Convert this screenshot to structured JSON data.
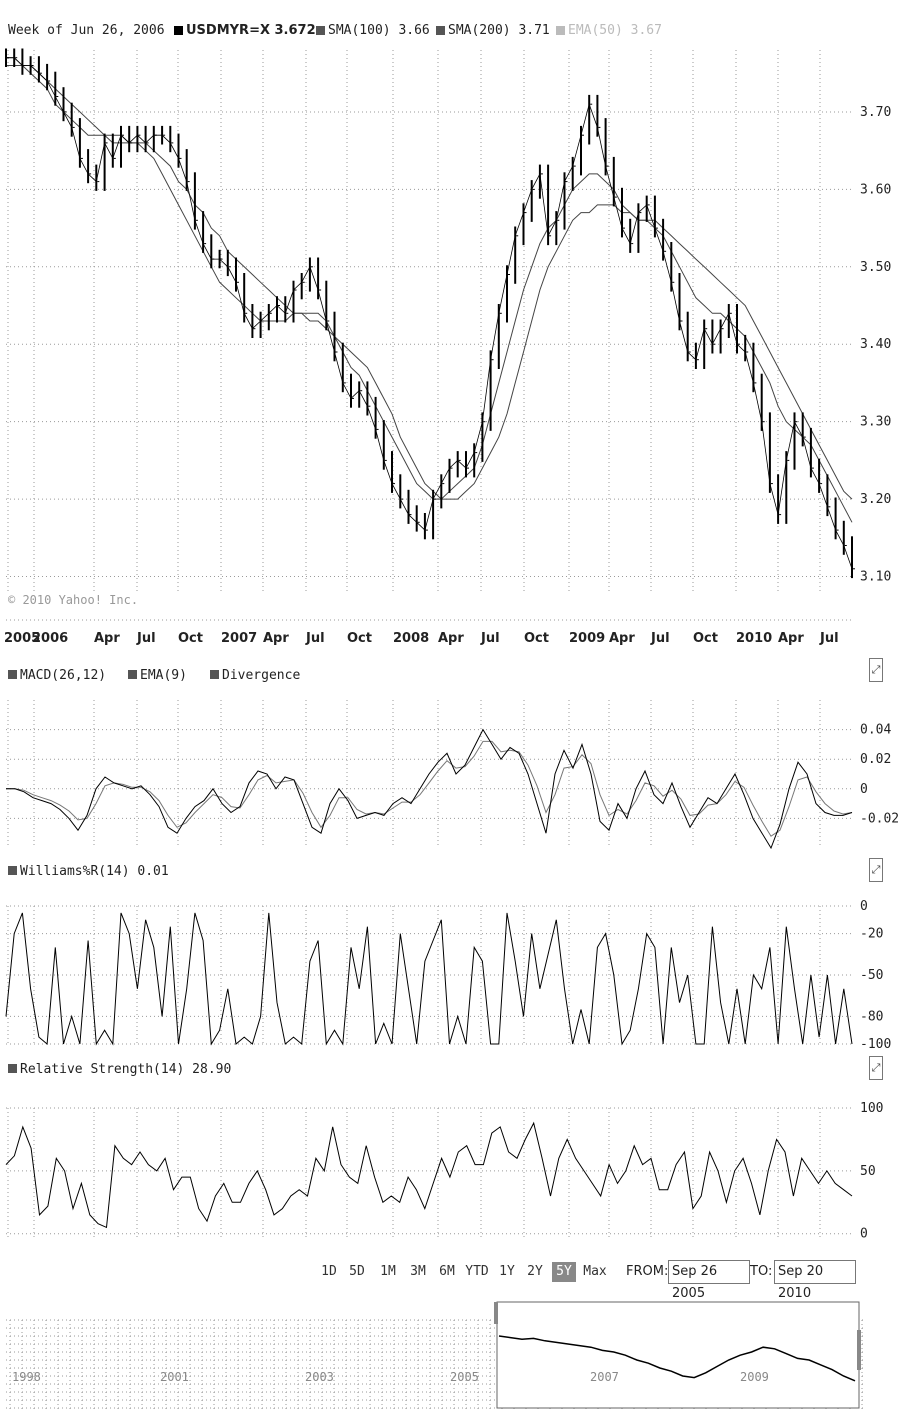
{
  "header": {
    "week_label": "Week of Jun 26, 2006 :",
    "symbol_label": "USDMYR=X 3.672",
    "sma100_label": "SMA(100) 3.66",
    "sma200_label": "SMA(200) 3.71",
    "ema_label": "EMA(50) 3.67"
  },
  "colors": {
    "price": "#000000",
    "grid": "#9a9a9a",
    "active_button": "#888888"
  },
  "chart_data": [
    {
      "type": "line",
      "panel": "price",
      "title": "USDMYR=X",
      "y_ticks": [
        "3.70",
        "3.60",
        "3.50",
        "3.40",
        "3.30",
        "3.20",
        "3.10"
      ],
      "y_tick_values": [
        3.7,
        3.6,
        3.5,
        3.4,
        3.3,
        3.2,
        3.1
      ],
      "ylim": [
        3.08,
        3.78
      ],
      "x_ticks": [
        "2005",
        "2006",
        "Apr",
        "Jul",
        "Oct",
        "2007",
        "Apr",
        "Jul",
        "Oct",
        "2008",
        "Apr",
        "Jul",
        "Oct",
        "2009",
        "Apr",
        "Jul",
        "Oct",
        "2010",
        "Apr",
        "Jul"
      ],
      "x_tick_positions": [
        8,
        34,
        94,
        137,
        178,
        221,
        263,
        306,
        347,
        393,
        438,
        481,
        524,
        569,
        609,
        651,
        693,
        736,
        778,
        820
      ],
      "x_tick_text_positions": [
        4,
        32,
        94,
        137,
        178,
        221,
        263,
        306,
        347,
        393,
        438,
        481,
        524,
        569,
        609,
        651,
        693,
        736,
        778,
        820
      ],
      "copyright": "© 2010 Yahoo! Inc.",
      "series": [
        {
          "name": "USDMYR=X",
          "values": [
            3.77,
            3.77,
            3.76,
            3.76,
            3.75,
            3.74,
            3.72,
            3.7,
            3.68,
            3.64,
            3.62,
            3.61,
            3.66,
            3.64,
            3.67,
            3.66,
            3.67,
            3.66,
            3.67,
            3.67,
            3.66,
            3.64,
            3.61,
            3.56,
            3.53,
            3.51,
            3.51,
            3.5,
            3.48,
            3.44,
            3.42,
            3.43,
            3.44,
            3.45,
            3.44,
            3.47,
            3.48,
            3.5,
            3.47,
            3.43,
            3.39,
            3.35,
            3.33,
            3.34,
            3.32,
            3.29,
            3.25,
            3.22,
            3.2,
            3.18,
            3.17,
            3.16,
            3.2,
            3.22,
            3.24,
            3.25,
            3.24,
            3.26,
            3.3,
            3.38,
            3.44,
            3.49,
            3.54,
            3.57,
            3.6,
            3.62,
            3.54,
            3.56,
            3.61,
            3.63,
            3.67,
            3.71,
            3.68,
            3.63,
            3.59,
            3.55,
            3.53,
            3.57,
            3.58,
            3.55,
            3.52,
            3.48,
            3.43,
            3.39,
            3.38,
            3.42,
            3.4,
            3.42,
            3.44,
            3.4,
            3.39,
            3.35,
            3.3,
            3.22,
            3.18,
            3.25,
            3.3,
            3.28,
            3.24,
            3.22,
            3.19,
            3.16,
            3.14,
            3.11
          ]
        },
        {
          "name": "SMA(100)",
          "values": [
            3.76,
            3.76,
            3.76,
            3.75,
            3.74,
            3.73,
            3.71,
            3.7,
            3.69,
            3.68,
            3.67,
            3.67,
            3.67,
            3.66,
            3.66,
            3.66,
            3.66,
            3.65,
            3.64,
            3.62,
            3.6,
            3.58,
            3.56,
            3.54,
            3.52,
            3.5,
            3.48,
            3.47,
            3.46,
            3.45,
            3.44,
            3.43,
            3.43,
            3.43,
            3.43,
            3.44,
            3.44,
            3.44,
            3.44,
            3.43,
            3.41,
            3.39,
            3.37,
            3.36,
            3.34,
            3.32,
            3.3,
            3.28,
            3.26,
            3.24,
            3.22,
            3.21,
            3.2,
            3.2,
            3.21,
            3.22,
            3.23,
            3.24,
            3.27,
            3.31,
            3.35,
            3.39,
            3.43,
            3.47,
            3.5,
            3.53,
            3.55,
            3.56,
            3.58,
            3.6,
            3.61,
            3.62,
            3.62,
            3.61,
            3.6,
            3.58,
            3.57,
            3.56,
            3.56,
            3.55,
            3.54,
            3.52,
            3.5,
            3.48,
            3.46,
            3.45,
            3.44,
            3.44,
            3.43,
            3.42,
            3.41,
            3.39,
            3.37,
            3.35,
            3.32,
            3.3,
            3.29,
            3.28,
            3.27,
            3.25,
            3.23,
            3.21,
            3.19,
            3.17
          ]
        },
        {
          "name": "SMA(200)",
          "values": [
            3.77,
            3.77,
            3.76,
            3.76,
            3.75,
            3.74,
            3.73,
            3.72,
            3.71,
            3.7,
            3.69,
            3.68,
            3.67,
            3.67,
            3.67,
            3.66,
            3.66,
            3.66,
            3.65,
            3.64,
            3.63,
            3.61,
            3.6,
            3.58,
            3.57,
            3.55,
            3.54,
            3.52,
            3.51,
            3.5,
            3.49,
            3.48,
            3.47,
            3.46,
            3.45,
            3.44,
            3.44,
            3.43,
            3.43,
            3.42,
            3.41,
            3.4,
            3.39,
            3.38,
            3.37,
            3.35,
            3.33,
            3.31,
            3.28,
            3.26,
            3.24,
            3.22,
            3.21,
            3.2,
            3.2,
            3.2,
            3.21,
            3.22,
            3.24,
            3.26,
            3.28,
            3.31,
            3.35,
            3.39,
            3.43,
            3.47,
            3.5,
            3.52,
            3.54,
            3.56,
            3.57,
            3.57,
            3.58,
            3.58,
            3.58,
            3.57,
            3.57,
            3.56,
            3.56,
            3.56,
            3.55,
            3.54,
            3.53,
            3.52,
            3.51,
            3.5,
            3.49,
            3.48,
            3.47,
            3.46,
            3.45,
            3.43,
            3.41,
            3.39,
            3.37,
            3.35,
            3.33,
            3.31,
            3.29,
            3.27,
            3.25,
            3.23,
            3.21,
            3.2
          ]
        }
      ]
    },
    {
      "type": "line",
      "panel": "macd",
      "legend": [
        "MACD(26,12)",
        "EMA(9)",
        "Divergence"
      ],
      "y_ticks": [
        "0.04",
        "0.02",
        "0",
        "-0.02"
      ],
      "y_tick_values": [
        0.04,
        0.02,
        0,
        -0.02
      ],
      "ylim": [
        -0.04,
        0.06
      ],
      "series": [
        {
          "name": "MACD(26,12)",
          "values": [
            0.0,
            0.0,
            -0.002,
            -0.006,
            -0.008,
            -0.01,
            -0.014,
            -0.02,
            -0.028,
            -0.018,
            0.0,
            0.008,
            0.004,
            0.002,
            0.0,
            0.002,
            -0.004,
            -0.012,
            -0.026,
            -0.03,
            -0.02,
            -0.012,
            -0.008,
            0.0,
            -0.01,
            -0.016,
            -0.012,
            0.004,
            0.012,
            0.01,
            0.0,
            0.008,
            0.006,
            -0.01,
            -0.026,
            -0.03,
            -0.01,
            0.0,
            -0.008,
            -0.02,
            -0.018,
            -0.016,
            -0.018,
            -0.01,
            -0.006,
            -0.01,
            0.0,
            0.01,
            0.018,
            0.024,
            0.01,
            0.016,
            0.028,
            0.04,
            0.03,
            0.02,
            0.028,
            0.024,
            0.01,
            -0.01,
            -0.03,
            0.01,
            0.026,
            0.014,
            0.03,
            0.01,
            -0.022,
            -0.028,
            -0.01,
            -0.02,
            0.0,
            0.012,
            -0.004,
            -0.01,
            0.004,
            -0.012,
            -0.026,
            -0.016,
            -0.006,
            -0.01,
            0.0,
            0.01,
            -0.004,
            -0.02,
            -0.03,
            -0.04,
            -0.024,
            0.0,
            0.018,
            0.01,
            -0.01,
            -0.016,
            -0.018,
            -0.018,
            -0.016
          ]
        },
        {
          "name": "EMA(9)",
          "values": [
            0.0,
            0.0,
            -0.001,
            -0.004,
            -0.006,
            -0.008,
            -0.011,
            -0.015,
            -0.021,
            -0.02,
            -0.01,
            0.002,
            0.004,
            0.003,
            0.001,
            0.001,
            -0.002,
            -0.008,
            -0.018,
            -0.026,
            -0.023,
            -0.016,
            -0.01,
            -0.004,
            -0.006,
            -0.012,
            -0.013,
            -0.004,
            0.006,
            0.009,
            0.004,
            0.005,
            0.006,
            -0.003,
            -0.016,
            -0.026,
            -0.018,
            -0.006,
            -0.006,
            -0.014,
            -0.017,
            -0.016,
            -0.017,
            -0.013,
            -0.009,
            -0.009,
            -0.004,
            0.004,
            0.012,
            0.019,
            0.014,
            0.015,
            0.022,
            0.032,
            0.032,
            0.025,
            0.026,
            0.025,
            0.016,
            0.002,
            -0.016,
            -0.004,
            0.014,
            0.015,
            0.023,
            0.017,
            -0.004,
            -0.018,
            -0.014,
            -0.017,
            -0.008,
            0.004,
            0.002,
            -0.005,
            -0.001,
            -0.007,
            -0.018,
            -0.017,
            -0.011,
            -0.01,
            -0.004,
            0.005,
            0.001,
            -0.011,
            -0.022,
            -0.032,
            -0.028,
            -0.012,
            0.006,
            0.008,
            -0.002,
            -0.01,
            -0.015,
            -0.017,
            -0.016
          ]
        }
      ]
    },
    {
      "type": "line",
      "panel": "williams",
      "legend": [
        "Williams%R(14) 0.01"
      ],
      "y_ticks": [
        "0",
        "-20",
        "-50",
        "-80",
        "-100"
      ],
      "y_tick_values": [
        0,
        -20,
        -50,
        -80,
        -100
      ],
      "ylim": [
        -100,
        0
      ],
      "series": [
        {
          "name": "Williams%R(14)",
          "values": [
            -80,
            -20,
            -5,
            -60,
            -95,
            -100,
            -30,
            -100,
            -80,
            -100,
            -25,
            -100,
            -90,
            -100,
            -5,
            -20,
            -60,
            -10,
            -30,
            -80,
            -15,
            -100,
            -60,
            -5,
            -25,
            -100,
            -90,
            -60,
            -100,
            -95,
            -100,
            -80,
            -5,
            -70,
            -100,
            -95,
            -100,
            -40,
            -25,
            -100,
            -90,
            -100,
            -30,
            -60,
            -15,
            -100,
            -85,
            -100,
            -20,
            -60,
            -100,
            -40,
            -25,
            -10,
            -100,
            -80,
            -100,
            -30,
            -40,
            -100,
            -100,
            -5,
            -40,
            -80,
            -20,
            -60,
            -35,
            -10,
            -60,
            -100,
            -75,
            -100,
            -30,
            -20,
            -50,
            -100,
            -90,
            -60,
            -20,
            -30,
            -100,
            -30,
            -70,
            -50,
            -100,
            -100,
            -15,
            -70,
            -100,
            -60,
            -100,
            -50,
            -60,
            -30,
            -100,
            -15,
            -60,
            -100,
            -50,
            -95,
            -50,
            -100,
            -60,
            -100
          ]
        }
      ]
    },
    {
      "type": "line",
      "panel": "rsi",
      "legend": [
        "Relative Strength(14) 28.90"
      ],
      "y_ticks": [
        "100",
        "50",
        "0"
      ],
      "y_tick_values": [
        100,
        50,
        0
      ],
      "ylim": [
        -5,
        100
      ],
      "series": [
        {
          "name": "Relative Strength(14)",
          "values": [
            55,
            62,
            85,
            68,
            15,
            22,
            60,
            50,
            20,
            40,
            15,
            8,
            5,
            70,
            60,
            55,
            65,
            55,
            50,
            60,
            35,
            45,
            45,
            20,
            10,
            30,
            40,
            25,
            25,
            40,
            50,
            35,
            15,
            20,
            30,
            35,
            30,
            60,
            50,
            85,
            55,
            45,
            40,
            70,
            45,
            25,
            30,
            25,
            45,
            35,
            20,
            40,
            60,
            45,
            65,
            70,
            55,
            55,
            80,
            85,
            65,
            60,
            75,
            88,
            60,
            30,
            60,
            75,
            60,
            50,
            40,
            30,
            55,
            40,
            50,
            70,
            55,
            60,
            35,
            35,
            55,
            65,
            20,
            30,
            65,
            50,
            25,
            50,
            60,
            40,
            15,
            50,
            75,
            65,
            30,
            60,
            50,
            40,
            50,
            40,
            35,
            30
          ]
        }
      ]
    },
    {
      "type": "area",
      "panel": "navigator",
      "x_ticks": [
        "1998",
        "2001",
        "2003",
        "2005",
        "2007",
        "2009"
      ],
      "x_tick_positions": [
        12,
        160,
        305,
        450,
        590,
        740
      ],
      "series": [
        {
          "name": "USDMYR=X",
          "values": [
            0.8,
            0.78,
            0.76,
            0.77,
            0.74,
            0.72,
            0.7,
            0.68,
            0.66,
            0.62,
            0.6,
            0.56,
            0.5,
            0.46,
            0.4,
            0.36,
            0.3,
            0.28,
            0.34,
            0.42,
            0.5,
            0.56,
            0.6,
            0.66,
            0.64,
            0.58,
            0.52,
            0.5,
            0.44,
            0.38,
            0.3,
            0.24
          ]
        }
      ]
    }
  ],
  "range_buttons": [
    {
      "label": "1D",
      "active": false
    },
    {
      "label": "5D",
      "active": false
    },
    {
      "label": "1M",
      "active": false
    },
    {
      "label": "3M",
      "active": false
    },
    {
      "label": "6M",
      "active": false
    },
    {
      "label": "YTD",
      "active": false
    },
    {
      "label": "1Y",
      "active": false
    },
    {
      "label": "2Y",
      "active": false
    },
    {
      "label": "5Y",
      "active": true
    },
    {
      "label": "Max",
      "active": false
    }
  ],
  "date_range": {
    "from_label": "FROM:",
    "from_value": "Sep 26 2005",
    "to_label": "TO:",
    "to_value": "Sep 20 2010"
  },
  "expand_glyph": "⤢"
}
